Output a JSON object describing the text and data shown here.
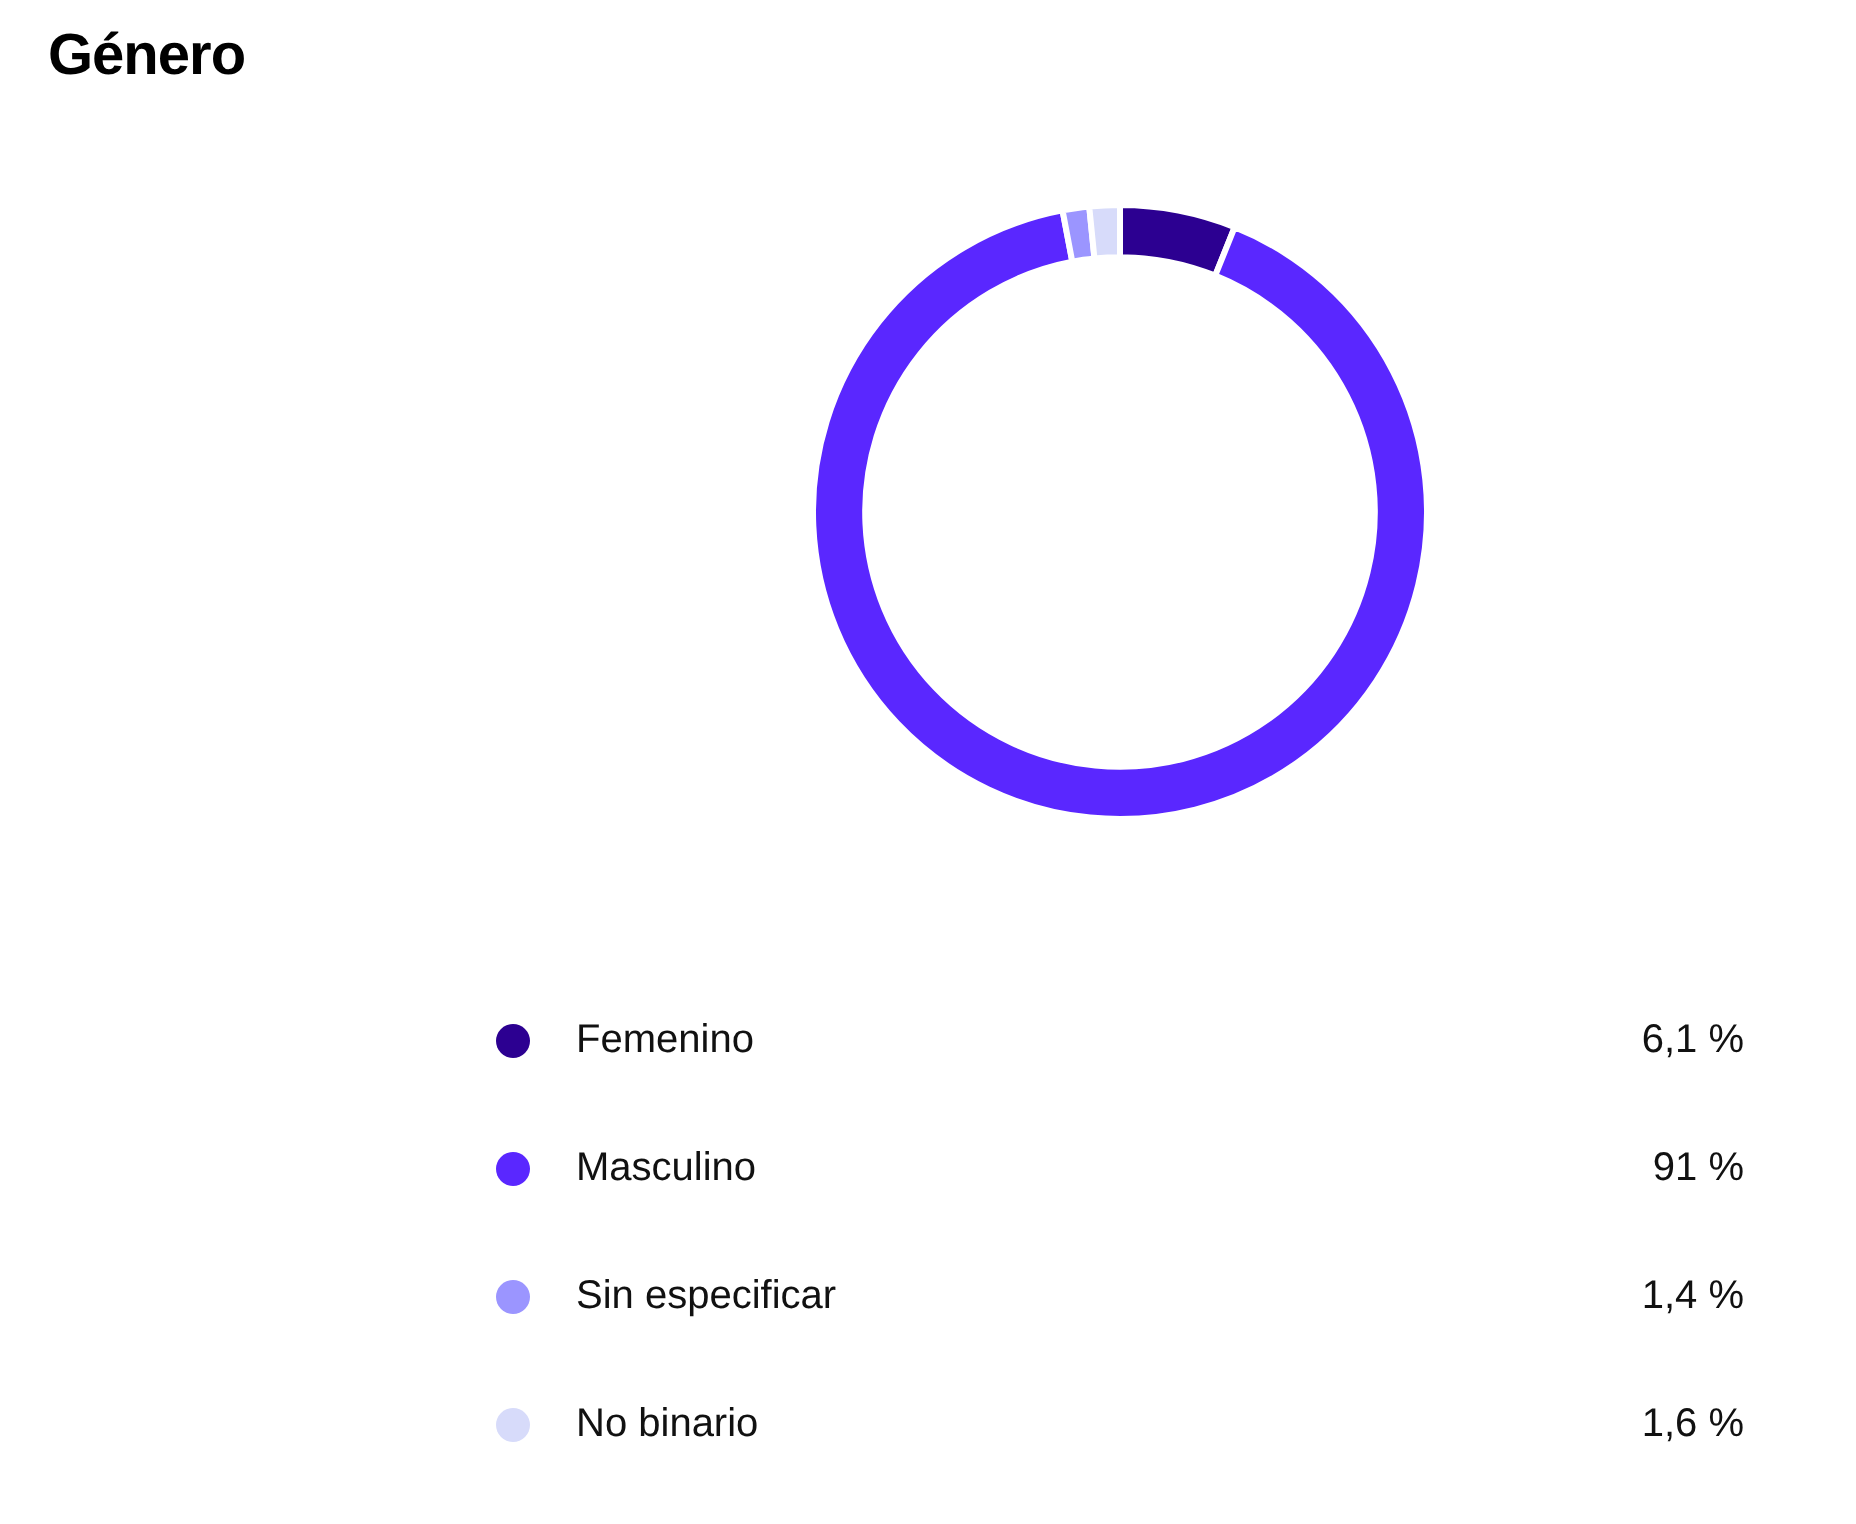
{
  "chart_data": {
    "type": "donut",
    "title": "Género",
    "categories": [
      "Femenino",
      "Masculino",
      "Sin especificar",
      "No binario"
    ],
    "values": [
      6.1,
      91,
      1.4,
      1.6
    ],
    "colors": [
      "#2c0091",
      "#5a27ff",
      "#9b95ff",
      "#d7dbfa"
    ],
    "value_labels": [
      "6,1 %",
      "91 %",
      "1,4 %",
      "1,6 %"
    ],
    "legend": "bottom"
  }
}
